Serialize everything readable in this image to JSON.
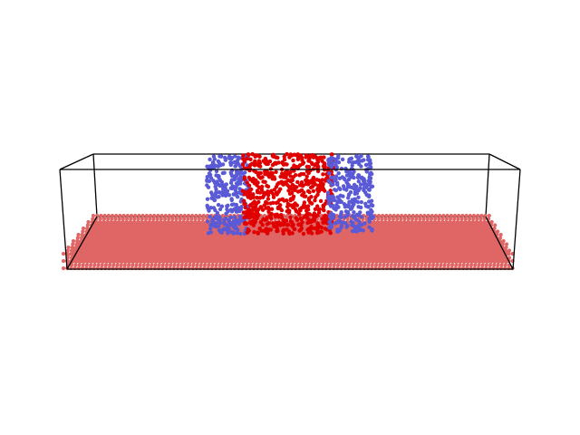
{
  "scene": {
    "description_kind": "molecular-dynamics-snapshot",
    "background_color": "#ffffff",
    "box_edge_color": "#000000",
    "substrate": {
      "name": "substrate-slab",
      "color": "#e06666",
      "layers": 3
    },
    "fluid_regions": [
      {
        "name": "left-blue-fluid",
        "color": "#5a5ad6"
      },
      {
        "name": "center-red-fluid",
        "color": "#e00000"
      },
      {
        "name": "right-blue-fluid",
        "color": "#5a5ad6"
      }
    ]
  }
}
